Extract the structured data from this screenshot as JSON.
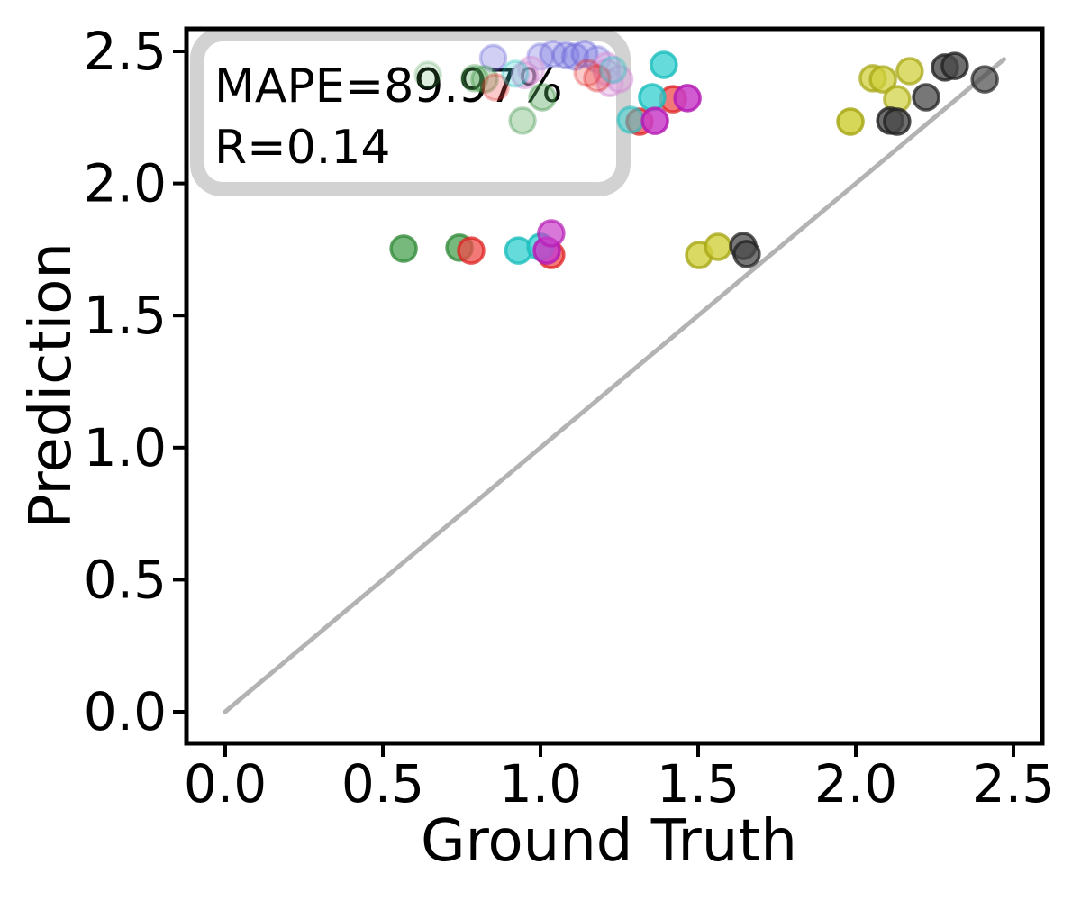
{
  "figure": {
    "background": "#ffffff",
    "frame_color": "#000000"
  },
  "chart_data": {
    "type": "scatter",
    "title": "",
    "xlabel": "Ground Truth",
    "ylabel": "Prediction",
    "xlim": [
      -0.12,
      2.59
    ],
    "ylim": [
      -0.12,
      2.59
    ],
    "grid": false,
    "legend": "none",
    "x_ticks": [
      {
        "value": 0.0,
        "label": "0.0"
      },
      {
        "value": 0.5,
        "label": "0.5"
      },
      {
        "value": 1.0,
        "label": "1.0"
      },
      {
        "value": 1.5,
        "label": "1.5"
      },
      {
        "value": 2.0,
        "label": "2.0"
      },
      {
        "value": 2.5,
        "label": "2.5"
      }
    ],
    "y_ticks": [
      {
        "value": 0.0,
        "label": "0.0"
      },
      {
        "value": 0.5,
        "label": "0.5"
      },
      {
        "value": 1.0,
        "label": "1.0"
      },
      {
        "value": 1.5,
        "label": "1.5"
      },
      {
        "value": 2.0,
        "label": "2.0"
      },
      {
        "value": 2.5,
        "label": "2.5"
      }
    ],
    "annotation": {
      "line1": "MAPE=89.97%",
      "line2": "R=0.14",
      "box_border_color": "#d0d0d0",
      "box_fill_color": "#ffffff"
    },
    "identity_line": {
      "x": [
        0.0,
        2.47
      ],
      "y": [
        0.0,
        2.47
      ],
      "color": "#b3b3b3",
      "width": 5
    },
    "marker_radius_px": 14,
    "series": [
      {
        "name": "blue",
        "fill": "#7b77e0",
        "edge": "#6460d5",
        "points": [
          [
            0.85,
            2.475,
            0.35
          ],
          [
            1.0,
            2.48,
            0.35
          ],
          [
            1.04,
            2.49,
            0.35
          ],
          [
            1.08,
            2.485,
            0.4
          ],
          [
            1.11,
            2.48,
            0.4
          ],
          [
            1.14,
            2.49,
            0.4
          ],
          [
            1.18,
            2.47,
            0.35
          ]
        ]
      },
      {
        "name": "plum",
        "fill": "#dda4dd",
        "edge": "#d28cd2",
        "points": [
          [
            0.97,
            2.43,
            0.4
          ],
          [
            0.95,
            2.41,
            0.45
          ],
          [
            1.21,
            2.445,
            0.45
          ],
          [
            1.21,
            2.42,
            0.5
          ],
          [
            1.22,
            2.38,
            0.45
          ],
          [
            1.25,
            2.395,
            0.5
          ]
        ]
      },
      {
        "name": "green",
        "fill": "#55a85c",
        "edge": "#348c3c",
        "points": [
          [
            0.566,
            1.753,
            0.8
          ],
          [
            0.743,
            1.757,
            0.8
          ],
          [
            0.643,
            2.411,
            0.2
          ],
          [
            0.791,
            2.398,
            0.35
          ],
          [
            0.823,
            2.394,
            0.35
          ],
          [
            1.006,
            2.326,
            0.4
          ],
          [
            0.943,
            2.238,
            0.35
          ]
        ]
      },
      {
        "name": "red",
        "fill": "#ef4b4b",
        "edge": "#dd2222",
        "points": [
          [
            0.78,
            1.746,
            0.75
          ],
          [
            1.034,
            1.729,
            0.75
          ],
          [
            1.314,
            2.234,
            0.75
          ],
          [
            1.42,
            2.319,
            0.75
          ],
          [
            0.857,
            2.364,
            0.3
          ],
          [
            1.149,
            2.418,
            0.3
          ],
          [
            1.18,
            2.398,
            0.35
          ]
        ]
      },
      {
        "name": "cyan",
        "fill": "#3ed2d2",
        "edge": "#1cbdbd",
        "points": [
          [
            0.93,
            1.746,
            0.8
          ],
          [
            1.0,
            1.76,
            0.8
          ],
          [
            1.354,
            2.326,
            0.8
          ],
          [
            1.391,
            2.449,
            0.8
          ],
          [
            0.92,
            2.415,
            0.3
          ],
          [
            1.23,
            2.43,
            0.3
          ],
          [
            1.286,
            2.241,
            0.55
          ]
        ]
      },
      {
        "name": "magenta",
        "fill": "#c93ec9",
        "edge": "#b51db5",
        "points": [
          [
            1.02,
            1.746,
            0.85
          ],
          [
            1.034,
            1.811,
            0.7
          ],
          [
            1.363,
            2.237,
            0.85
          ],
          [
            1.466,
            2.323,
            0.85
          ]
        ]
      },
      {
        "name": "yellow",
        "fill": "#cfd03c",
        "edge": "#a8a818",
        "points": [
          [
            1.503,
            1.729,
            0.8
          ],
          [
            1.563,
            1.76,
            0.8
          ],
          [
            1.983,
            2.234,
            0.85
          ],
          [
            2.054,
            2.398,
            0.75
          ],
          [
            2.086,
            2.394,
            0.75
          ],
          [
            2.131,
            2.319,
            0.7
          ],
          [
            2.171,
            2.425,
            0.75
          ]
        ]
      },
      {
        "name": "black",
        "fill": "#4a4a4a",
        "edge": "#222222",
        "points": [
          [
            1.643,
            1.763,
            0.75
          ],
          [
            1.654,
            1.733,
            0.75
          ],
          [
            2.109,
            2.238,
            0.8
          ],
          [
            2.131,
            2.234,
            0.8
          ],
          [
            2.223,
            2.326,
            0.75
          ],
          [
            2.283,
            2.439,
            0.8
          ],
          [
            2.314,
            2.445,
            0.8
          ],
          [
            2.409,
            2.394,
            0.7
          ]
        ]
      }
    ]
  }
}
